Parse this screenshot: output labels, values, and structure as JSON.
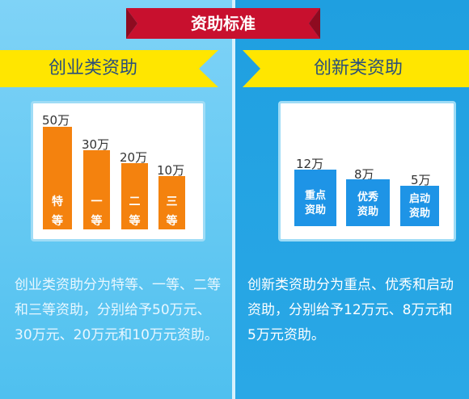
{
  "header": {
    "title": "资助标准"
  },
  "left": {
    "heading": "创业类资助",
    "bars": [
      {
        "value": "50万",
        "tag": "特等"
      },
      {
        "value": "30万",
        "tag": "一等"
      },
      {
        "value": "20万",
        "tag": "二等"
      },
      {
        "value": "10万",
        "tag": "三等"
      }
    ],
    "description": "创业类资助分为特等、一等、二等和三等资助，分别给予50万元、30万元、20万元和10万元资助。"
  },
  "right": {
    "heading": "创新类资助",
    "bars": [
      {
        "value": "12万",
        "tag": "重点资助"
      },
      {
        "value": "8万",
        "tag": "优秀资助"
      },
      {
        "value": "5万",
        "tag": "启动资助"
      }
    ],
    "description": "创新类资助分为重点、优秀和启动资助，分别给予12万元、8万元和5万元资助。"
  },
  "colors": {
    "banner_red": "#c8102e",
    "ribbon_yellow": "#ffe600",
    "bar_orange": "#f4820e",
    "bar_blue": "#1e94e6"
  }
}
